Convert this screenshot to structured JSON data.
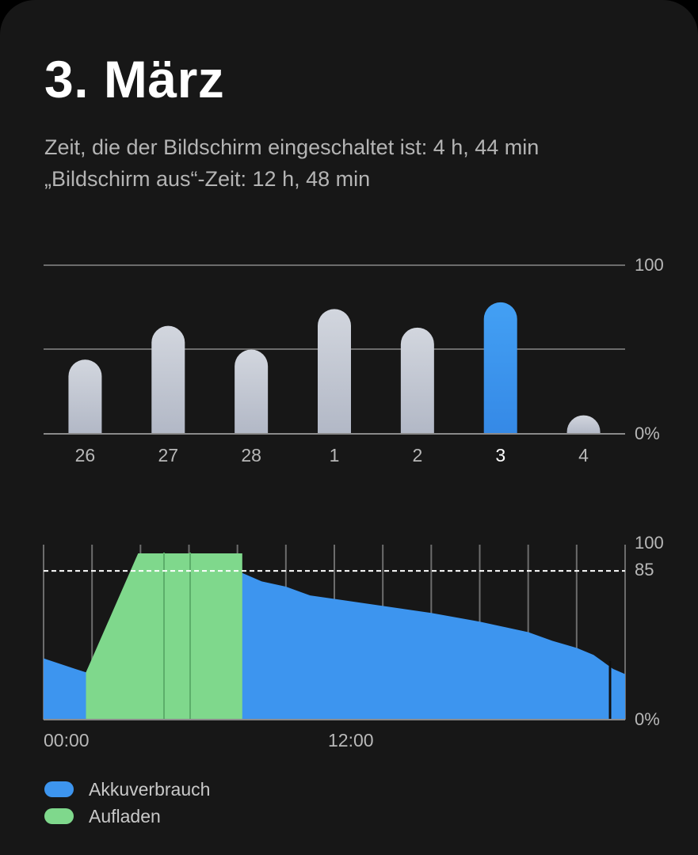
{
  "header": {
    "date_title": "3. März",
    "screen_on_text": "Zeit, die der Bildschirm eingeschaltet ist: 4 h, 44 min",
    "screen_off_text": "„Bildschirm aus“-Zeit: 12 h, 48 min"
  },
  "weekly_chart": {
    "y_top_label": "100",
    "y_bottom_label": "0%",
    "days": [
      {
        "label": "26",
        "value": 44,
        "selected": false
      },
      {
        "label": "27",
        "value": 64,
        "selected": false
      },
      {
        "label": "28",
        "value": 50,
        "selected": false
      },
      {
        "label": "1",
        "value": 74,
        "selected": false
      },
      {
        "label": "2",
        "value": 63,
        "selected": false
      },
      {
        "label": "3",
        "value": 78,
        "selected": true
      },
      {
        "label": "4",
        "value": 11,
        "selected": false
      }
    ]
  },
  "daily_chart": {
    "y_top_label": "100",
    "threshold_label": "85",
    "y_bottom_label": "0%",
    "threshold_value": 85,
    "x_start_label": "00:00",
    "x_mid_label": "12:00",
    "usage_points": [
      [
        0,
        35
      ],
      [
        1.3,
        29
      ],
      [
        1.75,
        27
      ],
      [
        4,
        95
      ],
      [
        5.9,
        94
      ],
      [
        6.3,
        91
      ],
      [
        7,
        87
      ],
      [
        8,
        85
      ],
      [
        9,
        79
      ],
      [
        10,
        76
      ],
      [
        11,
        71
      ],
      [
        12,
        69
      ],
      [
        14,
        65
      ],
      [
        16,
        61
      ],
      [
        18,
        56
      ],
      [
        20,
        50
      ],
      [
        21,
        45
      ],
      [
        22,
        41
      ],
      [
        22.7,
        37
      ],
      [
        23.5,
        29
      ],
      [
        24,
        26
      ]
    ],
    "charge_points": [
      [
        1.75,
        27
      ],
      [
        3.9,
        95
      ],
      [
        8.2,
        95
      ],
      [
        8.2,
        0
      ],
      [
        1.75,
        0
      ]
    ]
  },
  "legend": {
    "usage_label": "Akkuverbrauch",
    "charge_label": "Aufladen"
  },
  "colors": {
    "accent_blue": "#3d95ef",
    "charge_green": "#7fd88c",
    "bar_grey": "#c3c8d3",
    "background": "#171717"
  }
}
